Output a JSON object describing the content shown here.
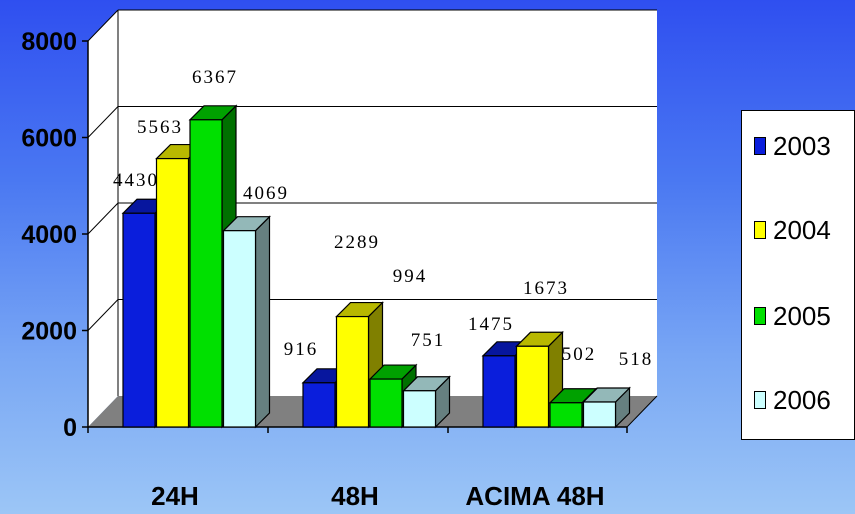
{
  "chart_data": {
    "type": "bar",
    "categories": [
      "24H",
      "48H",
      "ACIMA 48H"
    ],
    "series": [
      {
        "name": "2003",
        "values": [
          4430,
          916,
          1475
        ],
        "color": "#0a1edc"
      },
      {
        "name": "2004",
        "values": [
          5563,
          2289,
          1673
        ],
        "color": "#ffff00"
      },
      {
        "name": "2005",
        "values": [
          6367,
          994,
          502
        ],
        "color": "#00e000"
      },
      {
        "name": "2006",
        "values": [
          4069,
          751,
          518
        ],
        "color": "#ccffff"
      }
    ],
    "yticks": [
      "0",
      "2000",
      "4000",
      "6000",
      "8000"
    ],
    "ylim": [
      0,
      8000
    ],
    "grid": true,
    "legend_position": "right"
  }
}
